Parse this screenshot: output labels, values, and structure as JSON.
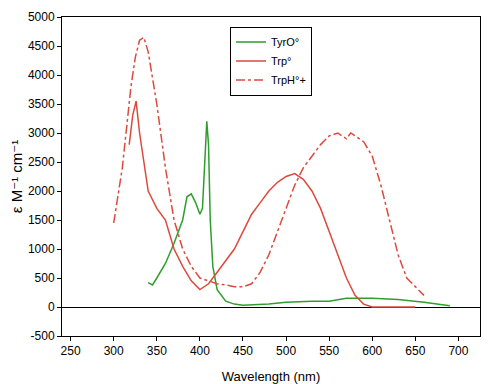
{
  "chart_data": {
    "type": "line",
    "x_label": "Wavelength (nm)",
    "y_label": "ε M⁻¹ cm⁻¹",
    "xlim": [
      240,
      725
    ],
    "ylim": [
      -500,
      5000
    ],
    "xticks": [
      250,
      300,
      350,
      400,
      450,
      500,
      550,
      600,
      650,
      700
    ],
    "yticks": [
      -500,
      0,
      500,
      1000,
      1500,
      2000,
      2500,
      3000,
      3500,
      4000,
      4500,
      5000
    ],
    "grid": false,
    "legend": "upper center",
    "series": [
      {
        "name": "TyrO°",
        "color": "#2e9e2e",
        "line_style": "solid",
        "marker": "none",
        "x": [
          340,
          345,
          350,
          360,
          370,
          380,
          385,
          390,
          395,
          400,
          403,
          406,
          408,
          410,
          412,
          415,
          420,
          430,
          440,
          450,
          480,
          500,
          530,
          550,
          570,
          600,
          630,
          660,
          690
        ],
        "values": [
          420,
          380,
          500,
          750,
          1100,
          1500,
          1900,
          1950,
          1800,
          1600,
          1700,
          2600,
          3200,
          2800,
          1500,
          700,
          300,
          100,
          50,
          30,
          50,
          80,
          100,
          100,
          150,
          150,
          130,
          80,
          20
        ]
      },
      {
        "name": "Trp°",
        "color": "#dc4a3e",
        "line_style": "solid",
        "marker": "none",
        "x": [
          318,
          322,
          326,
          330,
          340,
          350,
          360,
          370,
          380,
          390,
          400,
          410,
          420,
          430,
          440,
          450,
          460,
          470,
          480,
          490,
          500,
          510,
          520,
          530,
          540,
          550,
          560,
          570,
          580,
          590,
          600,
          620,
          650
        ],
        "values": [
          2800,
          3300,
          3550,
          3000,
          2000,
          1700,
          1500,
          1000,
          700,
          450,
          300,
          400,
          600,
          800,
          1000,
          1300,
          1600,
          1800,
          2000,
          2150,
          2250,
          2300,
          2200,
          2000,
          1700,
          1300,
          900,
          500,
          200,
          50,
          0,
          0,
          0
        ]
      },
      {
        "name": "TrpH°+",
        "color": "#dc4a3e",
        "line_style": "dashdot",
        "marker": "none",
        "x": [
          300,
          310,
          320,
          325,
          330,
          335,
          340,
          350,
          360,
          370,
          380,
          390,
          400,
          410,
          420,
          430,
          440,
          450,
          460,
          470,
          480,
          490,
          500,
          510,
          520,
          530,
          540,
          550,
          560,
          570,
          575,
          580,
          590,
          600,
          610,
          620,
          630,
          640,
          650,
          660
        ],
        "values": [
          1450,
          2400,
          3800,
          4300,
          4600,
          4650,
          4400,
          3500,
          2400,
          1500,
          1000,
          700,
          500,
          450,
          400,
          380,
          350,
          350,
          400,
          600,
          900,
          1300,
          1700,
          2100,
          2400,
          2600,
          2800,
          2950,
          3000,
          2900,
          3000,
          2950,
          2850,
          2600,
          2100,
          1500,
          900,
          500,
          350,
          200
        ]
      }
    ]
  }
}
